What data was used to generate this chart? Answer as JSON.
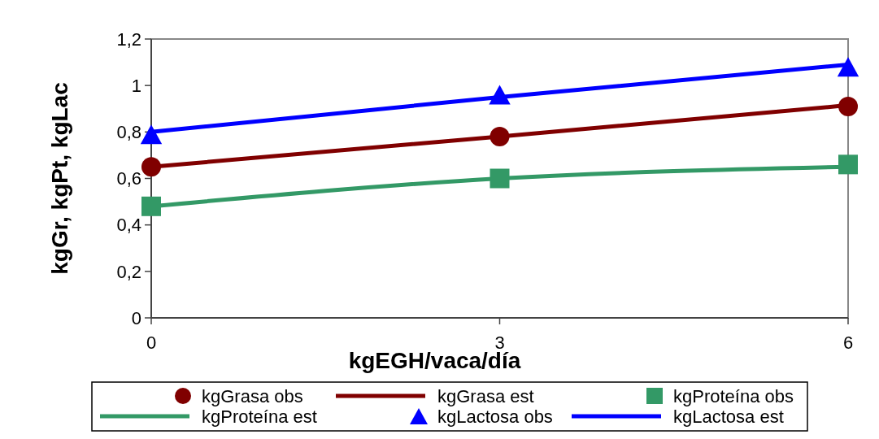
{
  "chart_data": {
    "type": "line",
    "xlabel": "kgEGH/vaca/día",
    "ylabel": "kgGr, kgPt, kgLac",
    "xlim": [
      0,
      6
    ],
    "xticks": [
      0,
      3,
      6
    ],
    "ylim": [
      0,
      1.2
    ],
    "yticks": [
      0,
      {
        "value": 0.2,
        "label": "0,2"
      },
      {
        "value": 0.4,
        "label": "0,4"
      },
      {
        "value": 0.6,
        "label": "0,6"
      },
      {
        "value": 0.8,
        "label": "0,8"
      },
      1,
      {
        "value": 1.2,
        "label": "1,2"
      }
    ],
    "grid": false,
    "legend": "bottom",
    "x": [
      0,
      3,
      6
    ],
    "series": [
      {
        "name": "kgGrasa obs",
        "type": "scatter",
        "marker": "circle",
        "color": "#800000",
        "values": [
          0.65,
          0.78,
          0.91
        ]
      },
      {
        "name": "kgGrasa est",
        "marker": "none",
        "color": "#800000",
        "values": [
          0.65,
          0.78,
          0.915
        ]
      },
      {
        "name": "kgProteína obs",
        "type": "scatter",
        "marker": "square",
        "color": "#339966",
        "values": [
          0.48,
          0.6,
          0.66
        ]
      },
      {
        "name": "kgProteína est",
        "marker": "none",
        "color": "#339966",
        "values": [
          0.48,
          0.6,
          0.65
        ]
      },
      {
        "name": "kgLactosa obs",
        "type": "scatter",
        "marker": "triangle",
        "color": "#0000ff",
        "values": [
          0.79,
          0.96,
          1.08
        ]
      },
      {
        "name": "kgLactosa est",
        "marker": "none",
        "color": "#0000ff",
        "values": [
          0.8,
          0.95,
          1.09
        ]
      }
    ]
  }
}
